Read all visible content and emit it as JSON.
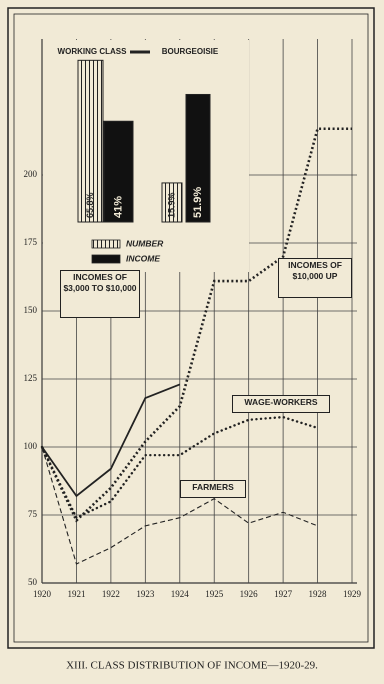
{
  "chart_data": [
    {
      "type": "line",
      "x": [
        1920,
        1921,
        1922,
        1923,
        1924,
        1925,
        1926,
        1927,
        1928,
        1929
      ],
      "xlim": [
        1920,
        1929
      ],
      "xticks": [
        1920,
        1921,
        1922,
        1923,
        1924,
        1925,
        1926,
        1927,
        1928,
        1929
      ],
      "ylim": [
        50,
        250
      ],
      "yticks": [
        50,
        75,
        100,
        125,
        150,
        175,
        200
      ],
      "grid": true,
      "series": [
        {
          "name": "INCOMES OF $3,000 TO $10,000",
          "color": "#222",
          "style": "solid",
          "values": [
            100,
            82,
            92,
            118,
            123,
            null,
            null,
            null,
            null,
            null
          ]
        },
        {
          "name": "INCOMES OF $10,000 UP",
          "color": "#222",
          "style": "crossed",
          "values": [
            100,
            73,
            85,
            102,
            115,
            161,
            161,
            170,
            217,
            217
          ]
        },
        {
          "name": "WAGE-WORKERS",
          "color": "#222",
          "style": "dotted",
          "values": [
            100,
            74,
            80,
            97,
            97,
            105,
            110,
            111,
            107,
            null
          ]
        },
        {
          "name": "FARMERS",
          "color": "#222",
          "style": "dashed",
          "values": [
            100,
            57,
            63,
            71,
            74,
            81,
            72,
            76,
            71,
            null
          ]
        }
      ]
    },
    {
      "type": "bar",
      "categories": [
        "WORKING CLASS",
        "BOURGEOISIE"
      ],
      "ylim": [
        0,
        70
      ],
      "series": [
        {
          "name": "NUMBER",
          "color": "#222",
          "hatch": true,
          "values": [
            65.8,
            15.9
          ],
          "value_labels": [
            "65.8%",
            "15.9%"
          ]
        },
        {
          "name": "INCOME",
          "color": "#111",
          "hatch": false,
          "values": [
            41,
            51.9
          ],
          "value_labels": [
            "41%",
            "51.9%"
          ]
        }
      ]
    }
  ],
  "caption": "XIII. CLASS DISTRIBUTION OF INCOME—1920-29."
}
